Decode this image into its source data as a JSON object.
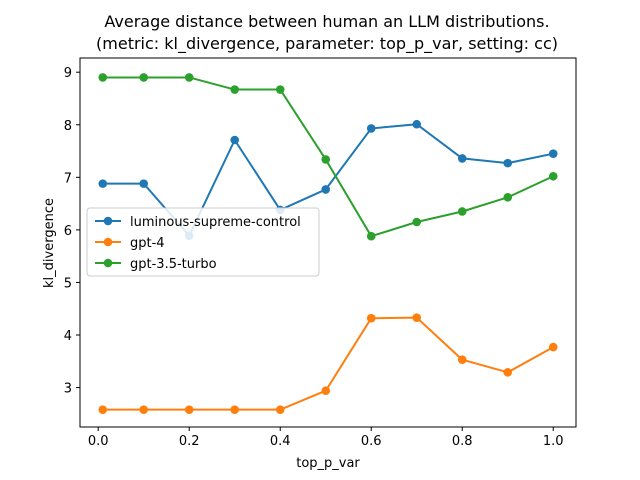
{
  "chart_data": {
    "type": "line",
    "title_lines": [
      "Average distance between human an LLM distributions.",
      "(metric: kl_divergence, parameter: top_p_var, setting: cc)"
    ],
    "xlabel": "top_p_var",
    "ylabel": "kl_divergence",
    "xlim": [
      -0.04,
      1.05
    ],
    "ylim": [
      2.25,
      9.27
    ],
    "xticks": [
      0.0,
      0.2,
      0.4,
      0.6,
      0.8,
      1.0
    ],
    "xtick_labels": [
      "0.0",
      "0.2",
      "0.4",
      "0.6",
      "0.8",
      "1.0"
    ],
    "yticks": [
      3,
      4,
      5,
      6,
      7,
      8,
      9
    ],
    "ytick_labels": [
      "3",
      "4",
      "5",
      "6",
      "7",
      "8",
      "9"
    ],
    "grid": false,
    "legend_position": "center-left",
    "x": [
      0.01,
      0.1,
      0.2,
      0.3,
      0.4,
      0.5,
      0.6,
      0.7,
      0.8,
      0.9,
      1.0
    ],
    "series": [
      {
        "name": "luminous-supreme-control",
        "color": "#1f77b4",
        "values": [
          6.88,
          6.88,
          5.89,
          7.71,
          6.38,
          6.77,
          7.93,
          8.01,
          7.36,
          7.27,
          7.45
        ]
      },
      {
        "name": "gpt-4",
        "color": "#ff7f0e",
        "values": [
          2.58,
          2.58,
          2.58,
          2.58,
          2.58,
          2.94,
          4.32,
          4.33,
          3.53,
          3.29,
          3.77
        ]
      },
      {
        "name": "gpt-3.5-turbo",
        "color": "#2ca02c",
        "values": [
          8.9,
          8.9,
          8.9,
          8.67,
          8.67,
          7.34,
          5.88,
          6.15,
          6.35,
          6.62,
          7.02
        ]
      }
    ]
  }
}
